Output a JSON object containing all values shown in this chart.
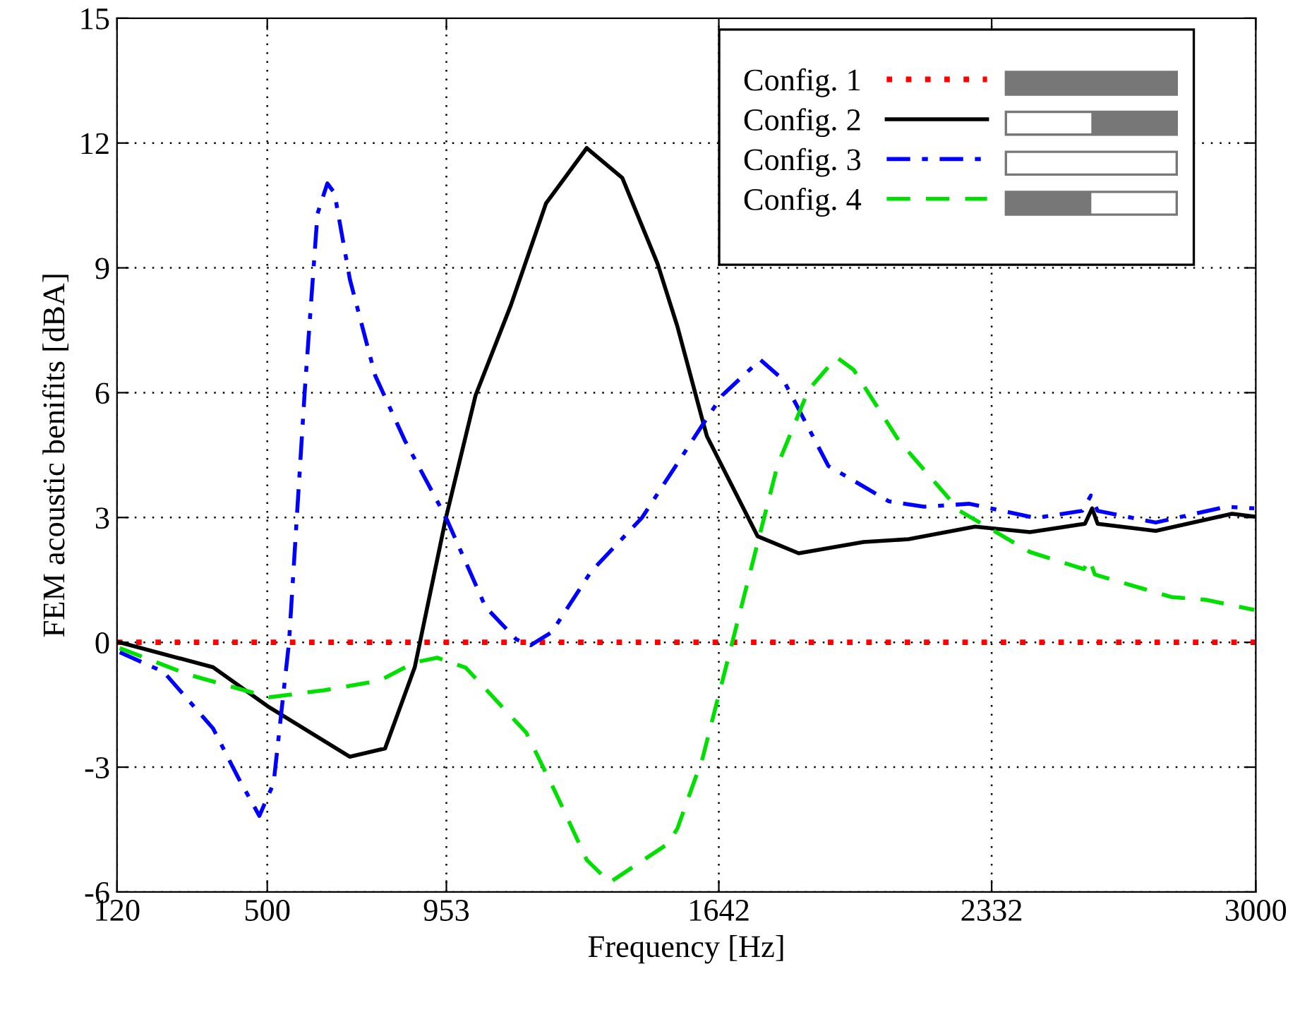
{
  "chart_data": {
    "type": "line",
    "xlabel": "Frequency [Hz]",
    "ylabel": "FEM acoustic benifits [dBA]",
    "xlim": [
      120,
      3000
    ],
    "ylim": [
      -6,
      15
    ],
    "xticks": [
      120,
      500,
      953,
      1642,
      2332,
      3000
    ],
    "yticks": [
      -6,
      -3,
      0,
      3,
      6,
      9,
      12,
      15
    ],
    "grid": true,
    "legend": "top right",
    "series": [
      {
        "name": "Config. 1",
        "color": "#ff0000",
        "line_style": "dotted",
        "x": [
          120,
          3000
        ],
        "values": [
          0,
          0
        ]
      },
      {
        "name": "Config. 2",
        "color": "#000000",
        "line_style": "solid",
        "x": [
          127,
          363,
          505,
          709,
          798,
          873,
          952,
          1027,
          1116,
          1205,
          1308,
          1398,
          1487,
          1537,
          1601,
          1612,
          1740,
          1844,
          2008,
          2122,
          2290,
          2429,
          2568,
          2586,
          2600,
          2747,
          2940,
          3000
        ],
        "values": [
          0,
          -0.6,
          -1.56,
          -2.75,
          -2.55,
          -0.6,
          3.0,
          5.94,
          8.1,
          10.55,
          11.88,
          11.16,
          9.1,
          7.6,
          5.33,
          4.95,
          2.55,
          2.14,
          2.41,
          2.48,
          2.78,
          2.65,
          2.85,
          3.22,
          2.85,
          2.68,
          3.09,
          3.02
        ]
      },
      {
        "name": "Config. 3",
        "color": "#0000ff",
        "line_style": "dashdot",
        "x": [
          127,
          238,
          363,
          427,
          480,
          516,
          555,
          595,
          627,
          652,
          670,
          709,
          773,
          848,
          952,
          1052,
          1130,
          1166,
          1219,
          1319,
          1448,
          1601,
          1651,
          1747,
          1805,
          1919,
          2072,
          2161,
          2276,
          2443,
          2561,
          2583,
          2600,
          2747,
          2925,
          2996
        ],
        "values": [
          -0.24,
          -0.71,
          -2.07,
          -3.26,
          -4.17,
          -3.39,
          0,
          6.07,
          10.3,
          11.03,
          10.8,
          8.72,
          6.41,
          4.85,
          3.0,
          0.85,
          0.07,
          -0.07,
          0.24,
          1.7,
          3.0,
          5.23,
          5.94,
          6.79,
          6.31,
          4.24,
          3.39,
          3.26,
          3.33,
          2.99,
          3.16,
          3.53,
          3.16,
          2.88,
          3.26,
          3.22
        ]
      },
      {
        "name": "Config. 4",
        "color": "#00e000",
        "line_style": "dashed",
        "x": [
          127,
          302,
          505,
          645,
          784,
          873,
          930,
          1002,
          1155,
          1230,
          1308,
          1366,
          1512,
          1537,
          1601,
          1676,
          1790,
          1869,
          1940,
          1983,
          2097,
          2251,
          2429,
          2565,
          2579,
          2593,
          2786,
          2875,
          2996
        ],
        "values": [
          -0.14,
          -0.78,
          -1.32,
          -1.15,
          -0.92,
          -0.48,
          -0.37,
          -0.61,
          -2.17,
          -3.63,
          -5.23,
          -5.77,
          -4.85,
          -4.48,
          -2.78,
          0,
          4.24,
          6.07,
          6.85,
          6.55,
          4.85,
          3.16,
          2.17,
          1.76,
          2.0,
          1.63,
          1.09,
          1.02,
          0.78
        ]
      }
    ]
  }
}
